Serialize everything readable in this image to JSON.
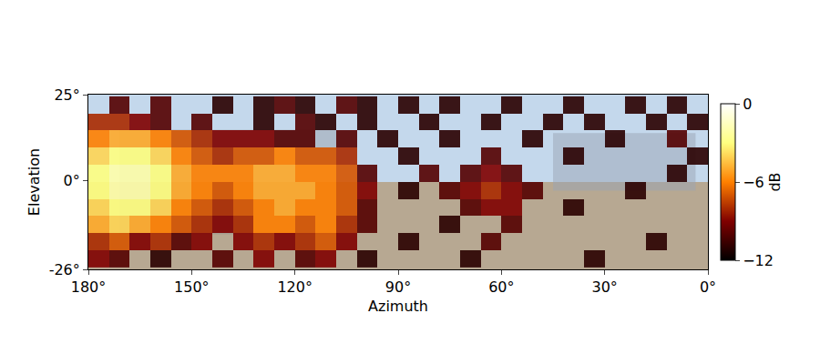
{
  "chart_data": {
    "type": "heatmap",
    "x_label": "Azimuth",
    "y_label": "Elevation",
    "xlim": [
      180,
      0
    ],
    "ylim": [
      -26,
      25
    ],
    "xticks": [
      {
        "value": 180,
        "label": "180°"
      },
      {
        "value": 150,
        "label": "150°"
      },
      {
        "value": 120,
        "label": "120°"
      },
      {
        "value": 90,
        "label": "90°"
      },
      {
        "value": 60,
        "label": "60°"
      },
      {
        "value": 30,
        "label": "30°"
      },
      {
        "value": 0,
        "label": "0°"
      }
    ],
    "yticks": [
      {
        "value": 25,
        "label": "25°"
      },
      {
        "value": 0,
        "label": "0°"
      },
      {
        "value": -26,
        "label": "-26°"
      }
    ],
    "x": [
      177,
      171,
      165,
      159,
      153,
      147,
      141,
      135,
      129,
      123,
      117,
      111,
      105,
      99,
      93,
      87,
      81,
      75,
      69,
      63,
      57,
      51,
      45,
      39,
      33,
      27,
      21,
      15,
      9,
      3
    ],
    "y": [
      -23,
      -18,
      -13,
      -8,
      -3,
      2,
      7,
      12,
      17,
      22
    ],
    "z": [
      [
        -9,
        -10,
        null,
        -11,
        null,
        null,
        -10,
        null,
        -9,
        null,
        -10,
        -9,
        null,
        -11,
        null,
        null,
        null,
        null,
        -11,
        null,
        null,
        null,
        null,
        null,
        -11,
        null,
        null,
        null,
        null,
        null
      ],
      [
        -8,
        -7,
        -9,
        -8,
        -10,
        -9,
        null,
        -9,
        -8,
        -9,
        -8,
        -7,
        -9,
        null,
        null,
        -11,
        null,
        null,
        null,
        -10,
        null,
        null,
        null,
        null,
        null,
        null,
        null,
        -11,
        null,
        null
      ],
      [
        -5,
        -4,
        -5,
        -6,
        -7,
        -8,
        -9,
        -8,
        -6,
        -6,
        -7,
        -6,
        -8,
        -10,
        null,
        null,
        null,
        -11,
        null,
        null,
        -10,
        null,
        null,
        null,
        null,
        null,
        null,
        null,
        null,
        null
      ],
      [
        -4,
        -3,
        -3,
        -4,
        -6,
        -7,
        -8,
        -7,
        -6,
        -5,
        -6,
        -6,
        -7,
        -10,
        null,
        null,
        null,
        null,
        -10,
        -9,
        -9,
        null,
        null,
        -11,
        null,
        null,
        null,
        null,
        null,
        null
      ],
      [
        -3,
        -2,
        -2,
        -3,
        -5,
        -6,
        -7,
        -6,
        -5,
        -5,
        -5,
        -6,
        -7,
        -9,
        null,
        -11,
        null,
        -10,
        -9,
        -8,
        -9,
        -10,
        null,
        null,
        null,
        null,
        -11,
        null,
        null,
        null
      ],
      [
        -3,
        -2,
        -2,
        -3,
        -5,
        -6,
        -6,
        -6,
        -5,
        -5,
        -6,
        -6,
        -7,
        -10,
        null,
        null,
        -10,
        null,
        -10,
        -9,
        -10,
        null,
        null,
        null,
        null,
        null,
        null,
        null,
        -11,
        null
      ],
      [
        -4,
        -3,
        -3,
        -4,
        -6,
        -7,
        -8,
        -7,
        -7,
        -6,
        -7,
        -7,
        -8,
        null,
        null,
        -11,
        null,
        null,
        null,
        -10,
        null,
        null,
        null,
        -11,
        null,
        null,
        null,
        null,
        null,
        -11
      ],
      [
        -6,
        -5,
        -5,
        -6,
        -7,
        -8,
        -9,
        -9,
        -9,
        -10,
        -10,
        null,
        -10,
        null,
        -11,
        null,
        null,
        -11,
        null,
        null,
        null,
        -11,
        null,
        null,
        null,
        -11,
        null,
        null,
        -10,
        null
      ],
      [
        -8,
        -8,
        -9,
        -10,
        null,
        -10,
        null,
        null,
        -11,
        null,
        -10,
        -11,
        null,
        -11,
        null,
        null,
        -11,
        null,
        null,
        -11,
        null,
        null,
        -11,
        null,
        -11,
        null,
        null,
        -11,
        null,
        -11
      ],
      [
        null,
        -10,
        null,
        -10,
        null,
        null,
        -11,
        null,
        -11,
        -10,
        -11,
        null,
        -10,
        -11,
        null,
        -11,
        null,
        -11,
        null,
        null,
        -11,
        null,
        null,
        -11,
        null,
        null,
        -11,
        null,
        -11,
        null
      ]
    ],
    "colorbar": {
      "title": "dB",
      "range": [
        -12,
        0
      ],
      "ticks": [
        {
          "value": 0,
          "label": "0"
        },
        {
          "value": -6,
          "label": "−6"
        },
        {
          "value": -12,
          "label": "−12"
        }
      ]
    }
  }
}
